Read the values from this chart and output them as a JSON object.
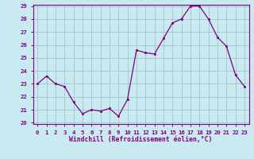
{
  "x": [
    0,
    1,
    2,
    3,
    4,
    5,
    6,
    7,
    8,
    9,
    10,
    11,
    12,
    13,
    14,
    15,
    16,
    17,
    18,
    19,
    20,
    21,
    22,
    23
  ],
  "y": [
    23.0,
    23.6,
    23.0,
    22.8,
    21.6,
    20.7,
    21.0,
    20.9,
    21.1,
    20.5,
    21.8,
    25.6,
    25.4,
    25.3,
    26.5,
    27.7,
    28.0,
    29.0,
    29.0,
    28.0,
    26.6,
    25.9,
    23.7,
    22.8
  ],
  "line_color": "#800080",
  "marker_color": "#800080",
  "bg_color": "#c8eaf0",
  "grid_color": "#9bbcbf",
  "axis_color": "#800080",
  "xlabel": "Windchill (Refroidissement éolien,°C)",
  "ylim": [
    20,
    29
  ],
  "xlim": [
    -0.5,
    23.5
  ],
  "yticks": [
    20,
    21,
    22,
    23,
    24,
    25,
    26,
    27,
    28,
    29
  ],
  "xticks": [
    0,
    1,
    2,
    3,
    4,
    5,
    6,
    7,
    8,
    9,
    10,
    11,
    12,
    13,
    14,
    15,
    16,
    17,
    18,
    19,
    20,
    21,
    22,
    23
  ],
  "tick_fontsize": 5.2,
  "xlabel_fontsize": 5.8,
  "linewidth": 0.9,
  "markersize": 2.0
}
